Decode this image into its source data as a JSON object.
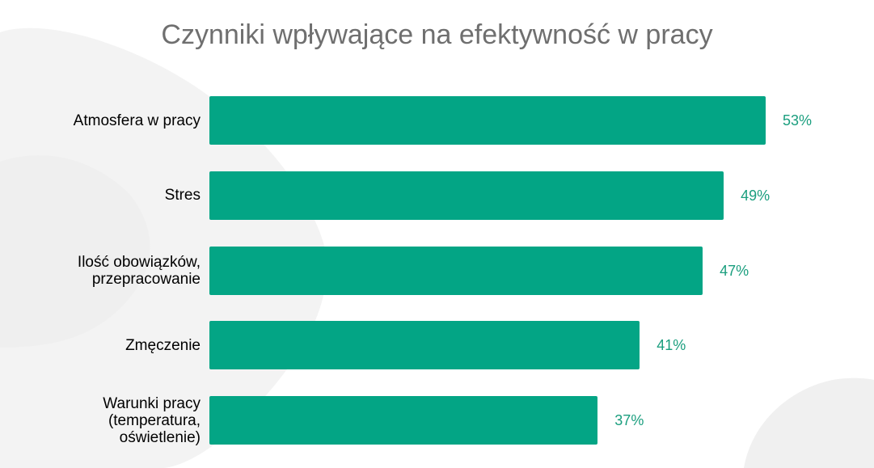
{
  "colors": {
    "bar": "#03a585",
    "value_label": "#1a9e7e",
    "background_blob": "#f2f2f2",
    "title": "#6f6f6f"
  },
  "chart_data": {
    "type": "bar",
    "orientation": "horizontal",
    "title": "Czynniki wpływające na efektywność w pracy",
    "categories": [
      "Atmosfera w pracy",
      "Stres",
      "Ilość obowiązków,\nprzepracowanie",
      "Zmęczenie",
      "Warunki pracy\n(temperatura,\noświetlenie)"
    ],
    "values": [
      53,
      49,
      47,
      41,
      37
    ],
    "value_labels": [
      "53%",
      "49%",
      "47%",
      "41%",
      "37%"
    ],
    "unit": "%",
    "xlim": [
      0,
      60
    ],
    "grid": false,
    "legend": "none"
  }
}
